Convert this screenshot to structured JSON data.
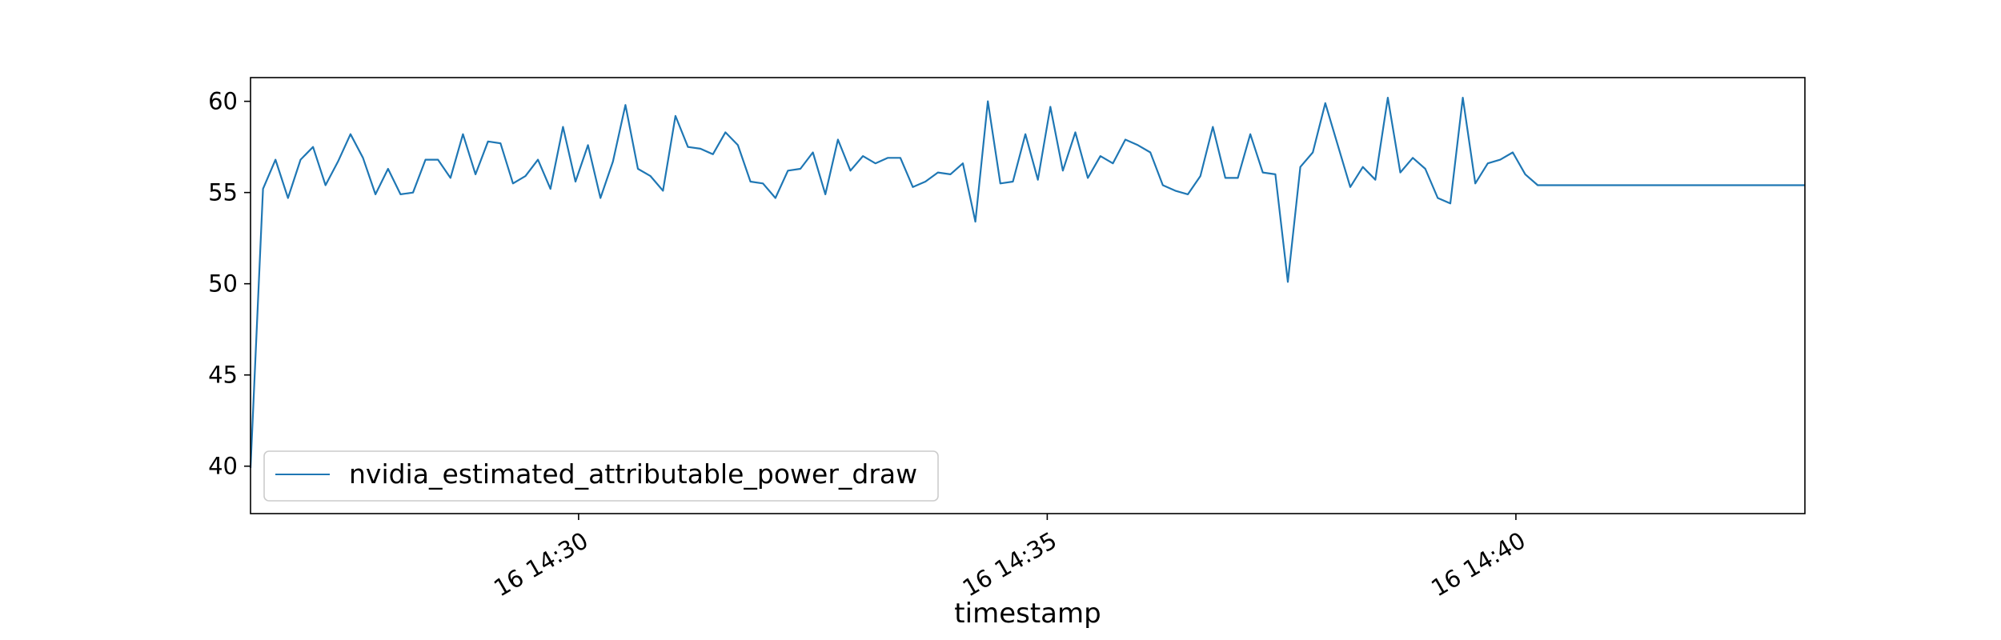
{
  "chart_data": {
    "type": "line",
    "title": "",
    "xlabel": "timestamp",
    "ylabel": "",
    "ylim": [
      37.4,
      61.3
    ],
    "yticks": [
      40,
      45,
      50,
      55,
      60
    ],
    "x_range": [
      "14:26:30",
      "14:43:05"
    ],
    "xticks": [
      {
        "time": "14:30:00",
        "label": "16 14:30"
      },
      {
        "time": "14:35:00",
        "label": "16 14:35"
      },
      {
        "time": "14:40:00",
        "label": "16 14:40"
      }
    ],
    "grid": false,
    "legend_position": "lower-left",
    "colors": {
      "series": "#1f77b4"
    },
    "series": [
      {
        "name": "nvidia_estimated_attributable_power_draw",
        "x": [
          "14:26:30",
          "14:26:38",
          "14:26:46",
          "14:26:54",
          "14:27:02",
          "14:27:10",
          "14:27:18",
          "14:27:26",
          "14:27:34",
          "14:27:42",
          "14:27:50",
          "14:27:58",
          "14:28:06",
          "14:28:14",
          "14:28:22",
          "14:28:30",
          "14:28:38",
          "14:28:46",
          "14:28:54",
          "14:29:02",
          "14:29:10",
          "14:29:18",
          "14:29:26",
          "14:29:34",
          "14:29:42",
          "14:29:50",
          "14:29:58",
          "14:30:06",
          "14:30:14",
          "14:30:22",
          "14:30:30",
          "14:30:38",
          "14:30:46",
          "14:30:54",
          "14:31:02",
          "14:31:10",
          "14:31:18",
          "14:31:26",
          "14:31:34",
          "14:31:42",
          "14:31:50",
          "14:31:58",
          "14:32:06",
          "14:32:14",
          "14:32:22",
          "14:32:30",
          "14:32:38",
          "14:32:46",
          "14:32:54",
          "14:33:02",
          "14:33:10",
          "14:33:18",
          "14:33:26",
          "14:33:34",
          "14:33:42",
          "14:33:50",
          "14:33:58",
          "14:34:06",
          "14:34:14",
          "14:34:22",
          "14:34:30",
          "14:34:38",
          "14:34:46",
          "14:34:54",
          "14:35:02",
          "14:35:10",
          "14:35:18",
          "14:35:26",
          "14:35:34",
          "14:35:42",
          "14:35:50",
          "14:35:58",
          "14:36:06",
          "14:36:14",
          "14:36:22",
          "14:36:30",
          "14:36:38",
          "14:36:46",
          "14:36:54",
          "14:37:02",
          "14:37:10",
          "14:37:18",
          "14:37:26",
          "14:37:34",
          "14:37:42",
          "14:37:50",
          "14:37:58",
          "14:38:06",
          "14:38:14",
          "14:38:22",
          "14:38:30",
          "14:38:38",
          "14:38:46",
          "14:38:54",
          "14:39:02",
          "14:39:10",
          "14:39:18",
          "14:39:26",
          "14:39:34",
          "14:39:42",
          "14:39:50",
          "14:39:58",
          "14:40:06",
          "14:40:14",
          "14:40:22",
          "14:40:30",
          "14:40:38",
          "14:40:46",
          "14:40:54",
          "14:41:02",
          "14:41:10",
          "14:41:18",
          "14:41:26",
          "14:41:34",
          "14:41:42",
          "14:41:50",
          "14:41:58",
          "14:42:06",
          "14:42:14",
          "14:42:22",
          "14:42:30",
          "14:42:38",
          "14:42:46",
          "14:42:54",
          "14:43:02",
          "14:43:05"
        ],
        "values": [
          39.9,
          55.2,
          56.8,
          54.7,
          56.8,
          57.5,
          55.4,
          56.7,
          58.2,
          56.9,
          54.9,
          56.3,
          54.9,
          55.0,
          56.8,
          56.8,
          55.8,
          58.2,
          56.0,
          57.8,
          57.7,
          55.5,
          55.9,
          56.8,
          55.2,
          58.6,
          55.6,
          57.6,
          54.7,
          56.7,
          59.8,
          56.3,
          55.9,
          55.1,
          59.2,
          57.5,
          57.4,
          57.1,
          58.3,
          57.6,
          55.6,
          55.5,
          54.7,
          56.2,
          56.3,
          57.2,
          54.9,
          57.9,
          56.2,
          57.0,
          56.6,
          56.9,
          56.9,
          55.3,
          55.6,
          56.1,
          56.0,
          56.6,
          53.4,
          60.0,
          55.5,
          55.6,
          58.2,
          55.7,
          59.7,
          56.2,
          58.3,
          55.8,
          57.0,
          56.6,
          57.9,
          57.6,
          57.2,
          55.4,
          55.1,
          54.9,
          55.9,
          58.6,
          55.8,
          55.8,
          58.2,
          56.1,
          56.0,
          50.1,
          56.4,
          57.2,
          59.9,
          57.6,
          55.3,
          56.4,
          55.7,
          60.2,
          56.1,
          56.9,
          56.3,
          54.7,
          54.4,
          60.2,
          55.5,
          56.6,
          56.8,
          57.2,
          56.0,
          55.4,
          55.4,
          55.4,
          55.4,
          55.4,
          55.4,
          55.4,
          55.4,
          55.4,
          55.4,
          55.4,
          55.4,
          55.4,
          55.4,
          55.4,
          55.4,
          55.4,
          55.4,
          55.4,
          55.4,
          55.4,
          55.4,
          55.4
        ]
      }
    ]
  }
}
